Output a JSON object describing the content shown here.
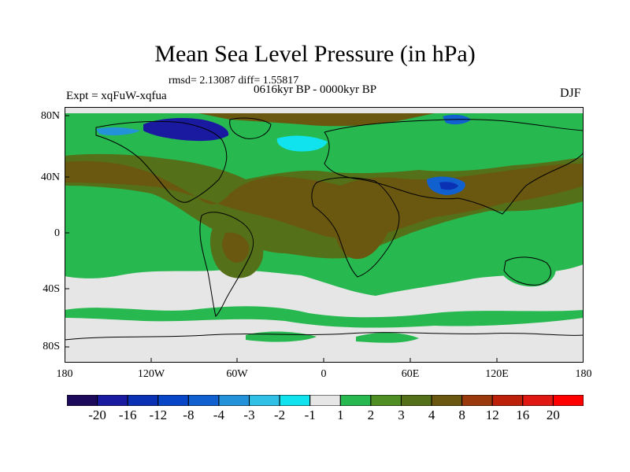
{
  "title": "Mean Sea Level Pressure (in hPa)",
  "stats": "rmsd= 2.13087 diff= 1.55817",
  "period": "0616kyr BP - 0000kyr BP",
  "experiment": "Expt = xqFuW-xqfua",
  "season": "DJF",
  "lat_labels": [
    "80N",
    "40N",
    "0",
    "40S",
    "80S"
  ],
  "lon_labels": [
    "180",
    "120W",
    "60W",
    "0",
    "60E",
    "120E",
    "180"
  ],
  "colorbar": {
    "labels": [
      "-20",
      "-16",
      "-12",
      "-8",
      "-4",
      "-3",
      "-2",
      "-1",
      "1",
      "2",
      "3",
      "4",
      "8",
      "12",
      "16",
      "20"
    ],
    "colors": [
      "#1e0a5a",
      "#1a1aa0",
      "#0a30b4",
      "#0846c8",
      "#1060d0",
      "#2492d8",
      "#30c0e6",
      "#10e2ee",
      "#e6e6e6",
      "#28b850",
      "#4f8e22",
      "#547018",
      "#6a5810",
      "#9a3a0c",
      "#bc2008",
      "#e01812",
      "#ff0000"
    ]
  }
}
